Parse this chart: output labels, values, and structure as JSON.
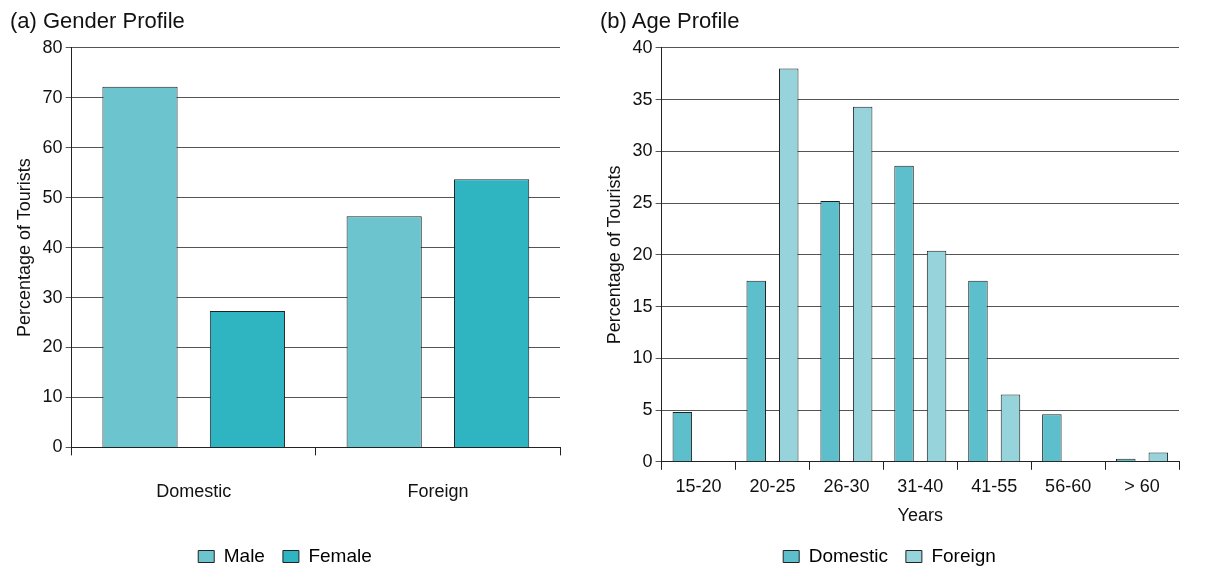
{
  "chart_data": [
    {
      "type": "bar",
      "title": "(a) Gender Profile",
      "ylabel": "Percentage of Tourists",
      "categories": [
        "Domestic",
        "Foreign"
      ],
      "ylim": [
        0,
        80
      ],
      "yticks": [
        0,
        10,
        20,
        30,
        40,
        50,
        60,
        70,
        80
      ],
      "grid": "y",
      "legend": "bottom",
      "series": [
        {
          "name": "Male",
          "color": "#6cc4cf",
          "values": [
            72.2,
            46.3
          ]
        },
        {
          "name": "Female",
          "color": "#2fb4c2",
          "values": [
            27.3,
            53.7
          ]
        }
      ]
    },
    {
      "type": "bar",
      "title": "(b) Age Profile",
      "ylabel": "Percentage of Tourists",
      "xlabel": "Years",
      "categories": [
        "15-20",
        "20-25",
        "26-30",
        "31-40",
        "41-55",
        "56-60",
        "> 60"
      ],
      "ylim": [
        0,
        40
      ],
      "yticks": [
        0,
        5,
        10,
        15,
        20,
        25,
        30,
        35,
        40
      ],
      "grid": "y",
      "legend": "bottom",
      "series": [
        {
          "name": "Domestic",
          "color": "#5cbfcb",
          "values": [
            4.8,
            17.5,
            25.2,
            28.6,
            17.5,
            4.6,
            0.3
          ]
        },
        {
          "name": "Foreign",
          "color": "#96d3db",
          "values": [
            0,
            38,
            34.3,
            20.4,
            6.5,
            0,
            0.9
          ]
        }
      ]
    }
  ]
}
